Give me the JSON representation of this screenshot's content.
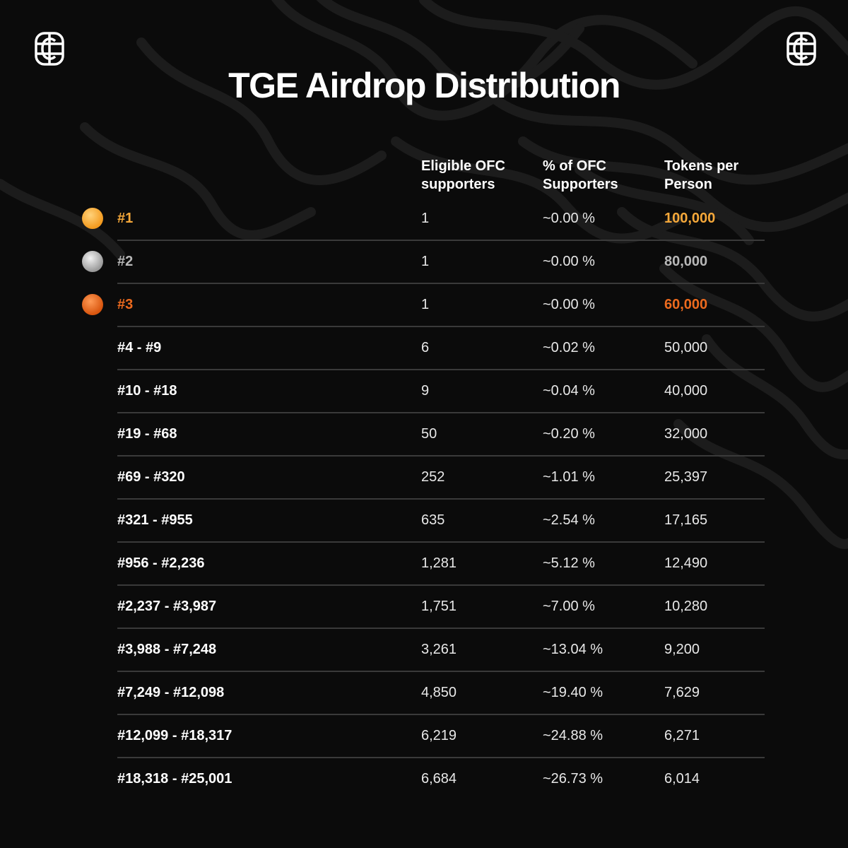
{
  "title": "TGE Airdrop Distribution",
  "colors": {
    "background": "#0b0b0b",
    "gold": "#f5a83a",
    "silver": "#b8b8b8",
    "bronze": "#ec6a1e",
    "divider": "#3a3a3a"
  },
  "headers": {
    "eligible": [
      "Eligible OFC",
      "supporters"
    ],
    "percent": [
      "% of OFC",
      "Supporters"
    ],
    "tokens": [
      "Tokens per",
      "Person"
    ]
  },
  "chart_data": {
    "type": "table",
    "columns": [
      "",
      "Eligible OFC supporters",
      "% of OFC Supporters",
      "Tokens per Person"
    ],
    "rows": [
      {
        "rank": "#1",
        "eligible": "1",
        "percent": "~0.00 %",
        "tokens": "100,000",
        "medal": "gold"
      },
      {
        "rank": "#2",
        "eligible": "1",
        "percent": "~0.00 %",
        "tokens": "80,000",
        "medal": "silver"
      },
      {
        "rank": "#3",
        "eligible": "1",
        "percent": "~0.00 %",
        "tokens": "60,000",
        "medal": "bronze"
      },
      {
        "rank": "#4 - #9",
        "eligible": "6",
        "percent": "~0.02 %",
        "tokens": "50,000"
      },
      {
        "rank": "#10 - #18",
        "eligible": "9",
        "percent": "~0.04 %",
        "tokens": "40,000"
      },
      {
        "rank": "#19 - #68",
        "eligible": "50",
        "percent": "~0.20 %",
        "tokens": "32,000"
      },
      {
        "rank": "#69 - #320",
        "eligible": "252",
        "percent": "~1.01 %",
        "tokens": "25,397"
      },
      {
        "rank": "#321 - #955",
        "eligible": "635",
        "percent": "~2.54 %",
        "tokens": "17,165"
      },
      {
        "rank": "#956 - #2,236",
        "eligible": "1,281",
        "percent": "~5.12 %",
        "tokens": "12,490"
      },
      {
        "rank": "#2,237 - #3,987",
        "eligible": "1,751",
        "percent": "~7.00 %",
        "tokens": "10,280"
      },
      {
        "rank": "#3,988 - #7,248",
        "eligible": "3,261",
        "percent": "~13.04 %",
        "tokens": "9,200"
      },
      {
        "rank": "#7,249 - #12,098",
        "eligible": "4,850",
        "percent": "~19.40 %",
        "tokens": "7,629"
      },
      {
        "rank": "#12,099 - #18,317",
        "eligible": "6,219",
        "percent": "~24.88 %",
        "tokens": "6,271"
      },
      {
        "rank": "#18,318 - #25,001",
        "eligible": "6,684",
        "percent": "~26.73 %",
        "tokens": "6,014"
      }
    ]
  }
}
